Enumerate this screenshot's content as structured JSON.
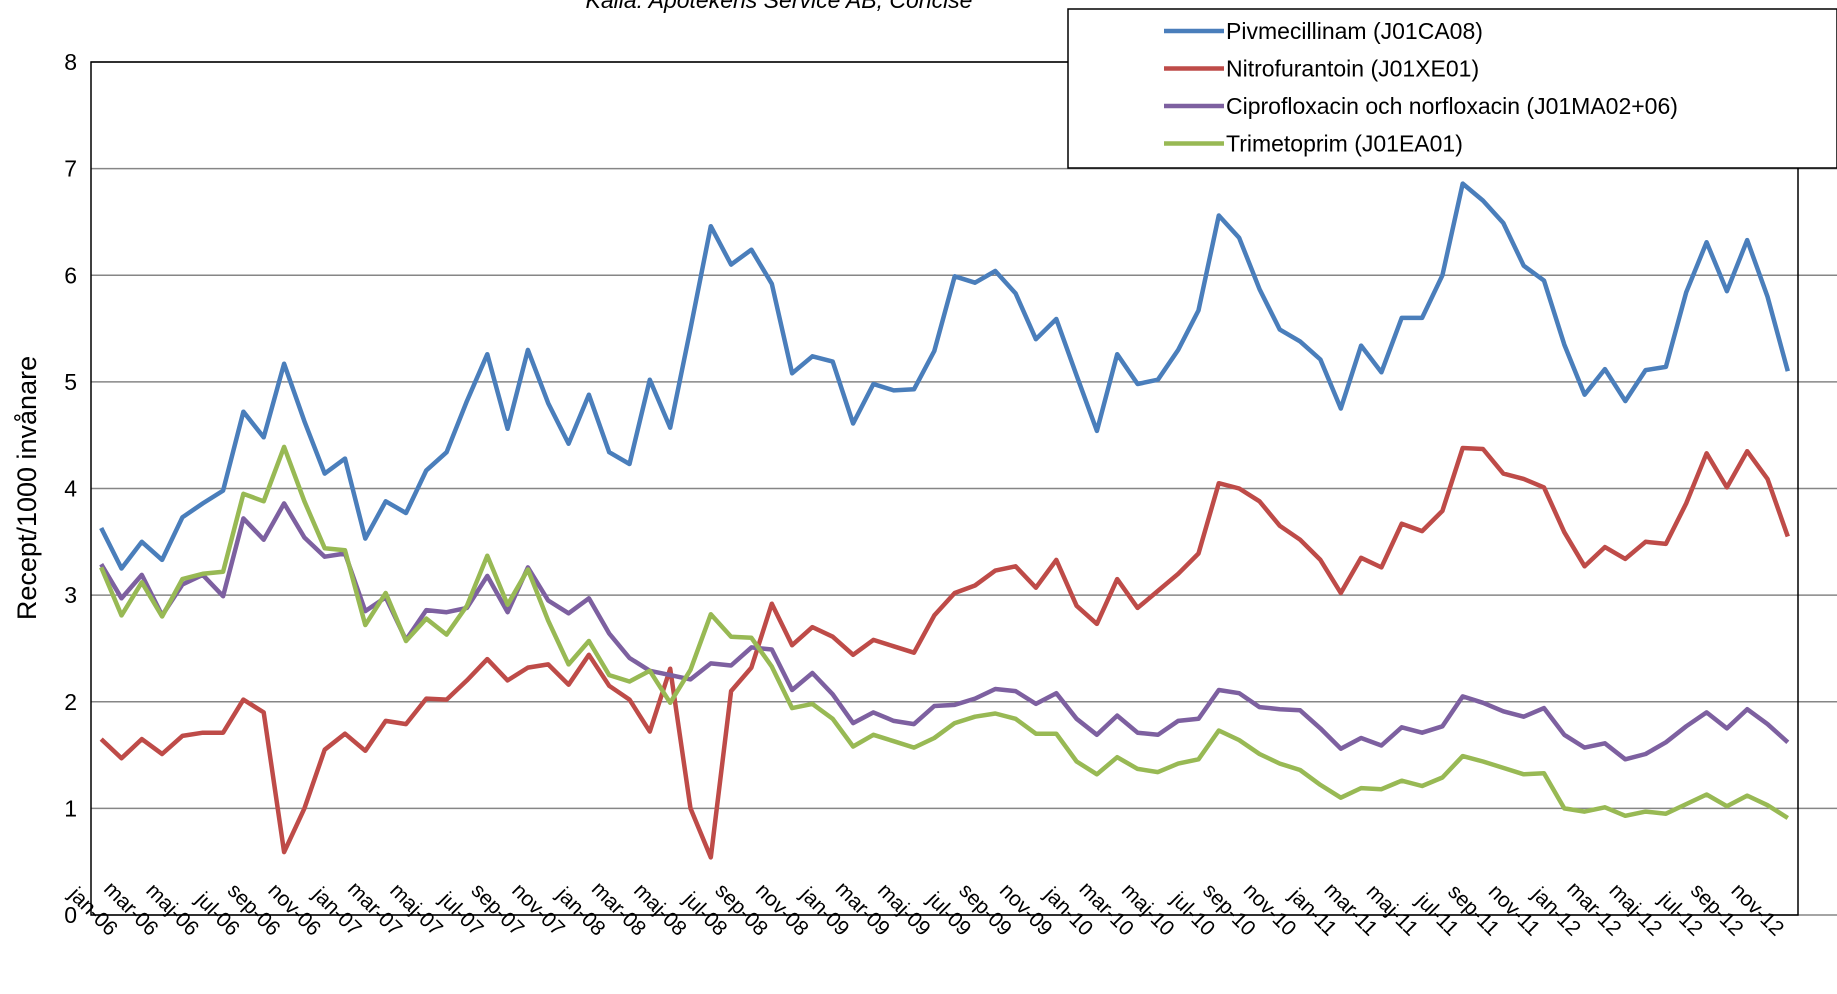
{
  "chart_data": {
    "type": "line",
    "source": "Källa: Apotekens Service AB, Concise",
    "y_label": "Recept/1000 invånare",
    "categories": [
      "jan-06",
      null,
      "mar-06",
      null,
      "maj-06",
      null,
      "jul-06",
      null,
      "sep-06",
      null,
      "nov-06",
      null,
      "jan-07",
      null,
      "mar-07",
      null,
      "maj-07",
      null,
      "jul-07",
      null,
      "sep-07",
      null,
      "nov-07",
      null,
      "jan-08",
      null,
      "mar-08",
      null,
      "maj-08",
      null,
      "jul-08",
      null,
      "sep-08",
      null,
      "nov-08",
      null,
      "jan-09",
      null,
      "mar-09",
      null,
      "maj-09",
      null,
      "jul-09",
      null,
      "sep-09",
      null,
      "nov-09",
      null,
      "jan-10",
      null,
      "mar-10",
      null,
      "maj-10",
      null,
      "jul-10",
      null,
      "sep-10",
      null,
      "nov-10",
      null,
      "jan-11",
      null,
      "mar-11",
      null,
      "maj-11",
      null,
      "jul-11",
      null,
      "sep-11",
      null,
      "nov-11",
      null,
      "jan-12",
      null,
      "mar-12",
      null,
      "maj-12",
      null,
      "jul-12",
      null,
      "sep-12",
      null,
      "nov-12",
      null
    ],
    "series": [
      {
        "name": "Pivmecillinam (J01CA08)",
        "color": "#4a7ebb",
        "values": [
          3.63,
          3.25,
          3.5,
          3.33,
          3.73,
          3.86,
          3.98,
          4.72,
          4.48,
          5.17,
          4.63,
          4.14,
          4.28,
          3.53,
          3.88,
          3.77,
          4.17,
          4.34,
          4.82,
          5.26,
          4.56,
          5.3,
          4.8,
          4.42,
          4.88,
          4.34,
          4.23,
          5.02,
          4.57,
          5.5,
          6.46,
          6.1,
          6.24,
          5.92,
          5.08,
          5.24,
          5.19,
          4.61,
          4.98,
          4.92,
          4.93,
          5.29,
          5.99,
          5.93,
          6.04,
          5.83,
          5.4,
          5.59,
          5.06,
          4.54,
          5.26,
          4.98,
          5.02,
          5.3,
          5.67,
          6.56,
          6.35,
          5.87,
          5.49,
          5.38,
          5.21,
          4.75,
          5.34,
          5.09,
          5.6,
          5.6,
          6.0,
          6.86,
          6.7,
          6.49,
          6.09,
          5.95,
          5.35,
          4.88,
          5.12,
          4.82,
          5.11,
          5.14,
          5.84,
          6.31,
          5.85,
          6.33,
          5.8,
          5.1
        ]
      },
      {
        "name": "Nitrofurantoin (J01XE01)",
        "color": "#be4b48",
        "values": [
          1.65,
          1.47,
          1.65,
          1.51,
          1.68,
          1.71,
          1.71,
          2.02,
          1.9,
          0.59,
          1.0,
          1.55,
          1.7,
          1.54,
          1.82,
          1.79,
          2.03,
          2.02,
          2.2,
          2.4,
          2.2,
          2.32,
          2.35,
          2.16,
          2.44,
          2.15,
          2.02,
          1.72,
          2.31,
          1.0,
          0.54,
          2.1,
          2.32,
          2.92,
          2.53,
          2.7,
          2.61,
          2.44,
          2.58,
          2.52,
          2.46,
          2.81,
          3.02,
          3.09,
          3.23,
          3.27,
          3.07,
          3.33,
          2.9,
          2.73,
          3.15,
          2.88,
          3.04,
          3.2,
          3.39,
          4.05,
          4.0,
          3.88,
          3.65,
          3.52,
          3.33,
          3.02,
          3.35,
          3.26,
          3.67,
          3.6,
          3.79,
          4.38,
          4.37,
          4.14,
          4.09,
          4.01,
          3.59,
          3.27,
          3.45,
          3.34,
          3.5,
          3.48,
          3.86,
          4.33,
          4.01,
          4.35,
          4.09,
          3.55
        ]
      },
      {
        "name": "Ciprofloxacin och norfloxacin (J01MA02+06)",
        "color": "#7d60a0",
        "values": [
          3.29,
          2.97,
          3.19,
          2.81,
          3.1,
          3.19,
          2.99,
          3.72,
          3.52,
          3.86,
          3.54,
          3.36,
          3.39,
          2.85,
          2.98,
          2.58,
          2.86,
          2.84,
          2.88,
          3.18,
          2.84,
          3.26,
          2.95,
          2.83,
          2.97,
          2.64,
          2.41,
          2.29,
          2.25,
          2.21,
          2.36,
          2.34,
          2.51,
          2.49,
          2.11,
          2.27,
          2.07,
          1.8,
          1.9,
          1.82,
          1.79,
          1.96,
          1.97,
          2.03,
          2.12,
          2.1,
          1.98,
          2.08,
          1.84,
          1.69,
          1.87,
          1.71,
          1.69,
          1.82,
          1.84,
          2.11,
          2.08,
          1.95,
          1.93,
          1.92,
          1.75,
          1.56,
          1.66,
          1.59,
          1.76,
          1.71,
          1.77,
          2.05,
          1.99,
          1.91,
          1.86,
          1.94,
          1.69,
          1.57,
          1.61,
          1.46,
          1.51,
          1.62,
          1.77,
          1.9,
          1.75,
          1.93,
          1.79,
          1.62
        ]
      },
      {
        "name": "Trimetoprim (J01EA01)",
        "color": "#98b954",
        "values": [
          3.26,
          2.81,
          3.12,
          2.8,
          3.15,
          3.2,
          3.22,
          3.95,
          3.88,
          4.39,
          3.88,
          3.44,
          3.42,
          2.72,
          3.02,
          2.57,
          2.78,
          2.63,
          2.9,
          3.37,
          2.91,
          3.24,
          2.76,
          2.35,
          2.57,
          2.25,
          2.19,
          2.29,
          1.99,
          2.3,
          2.82,
          2.61,
          2.6,
          2.33,
          1.94,
          1.98,
          1.84,
          1.58,
          1.69,
          1.63,
          1.57,
          1.66,
          1.8,
          1.86,
          1.89,
          1.84,
          1.7,
          1.7,
          1.44,
          1.32,
          1.48,
          1.37,
          1.34,
          1.42,
          1.46,
          1.73,
          1.64,
          1.51,
          1.42,
          1.36,
          1.22,
          1.1,
          1.19,
          1.18,
          1.26,
          1.21,
          1.29,
          1.49,
          1.44,
          1.38,
          1.32,
          1.33,
          1.0,
          0.97,
          1.01,
          0.93,
          0.97,
          0.95,
          1.04,
          1.13,
          1.02,
          1.12,
          1.03,
          0.91
        ]
      }
    ],
    "ylim": [
      0,
      8
    ],
    "yticks": [
      0,
      1,
      2,
      3,
      4,
      5,
      6,
      7,
      8
    ],
    "grid": true,
    "legend": "top-right"
  }
}
